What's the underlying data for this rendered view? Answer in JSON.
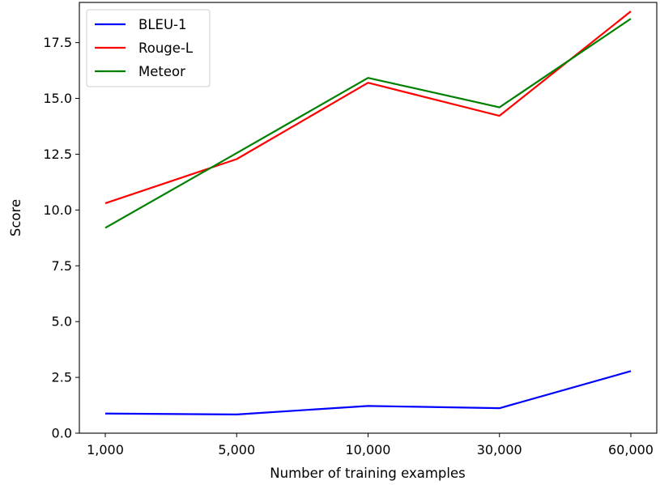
{
  "chart_data": {
    "type": "line",
    "title": "",
    "xlabel": "Number of training examples",
    "ylabel": "Score",
    "categories": [
      "1,000",
      "5,000",
      "10,000",
      "30,000",
      "60,000"
    ],
    "ylim": [
      0,
      19.3
    ],
    "yticks": [
      0.0,
      2.5,
      5.0,
      7.5,
      10.0,
      12.5,
      15.0,
      17.5
    ],
    "ytick_labels": [
      "0.0",
      "2.5",
      "5.0",
      "7.5",
      "10.0",
      "12.5",
      "15.0",
      "17.5"
    ],
    "grid": false,
    "legend_position": "top-left",
    "series": [
      {
        "name": "BLEU-1",
        "color": "#0000ff",
        "values": [
          0.88,
          0.84,
          1.22,
          1.12,
          2.78
        ]
      },
      {
        "name": "Rouge-L",
        "color": "#ff0000",
        "values": [
          10.3,
          12.28,
          15.7,
          14.22,
          18.9
        ]
      },
      {
        "name": "Meteor",
        "color": "#008000",
        "values": [
          9.2,
          12.55,
          15.92,
          14.6,
          18.57
        ]
      }
    ]
  }
}
